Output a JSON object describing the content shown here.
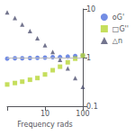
{
  "chart_data": {
    "type": "scatter",
    "xlabel": "Frequency rads",
    "log": true,
    "x": [
      1.0,
      1.6,
      2.5,
      4.0,
      6.3,
      10,
      16,
      25,
      40,
      63,
      100
    ],
    "series": [
      {
        "name": "oG'",
        "marker": "circle",
        "values": [
          0.95,
          0.97,
          0.97,
          0.98,
          0.99,
          1.0,
          1.02,
          1.03,
          1.05,
          1.08,
          1.1
        ]
      },
      {
        "name": "□G''",
        "marker": "square",
        "values": [
          0.28,
          0.3,
          0.32,
          0.35,
          0.38,
          0.45,
          0.55,
          0.65,
          0.8,
          0.95,
          1.1
        ]
      },
      {
        "name": "△n",
        "marker": "triangle",
        "values": [
          8.5,
          6.5,
          4.8,
          3.5,
          2.5,
          1.8,
          1.3,
          0.9,
          0.6,
          0.38,
          0.25
        ]
      }
    ],
    "xlim": [
      1,
      100
    ],
    "xticks": [
      10,
      100
    ],
    "ylim": [
      0.1,
      10
    ],
    "yticks": [
      0.1,
      1,
      10
    ],
    "hline": 1.0,
    "grid": false,
    "legend": "right"
  }
}
